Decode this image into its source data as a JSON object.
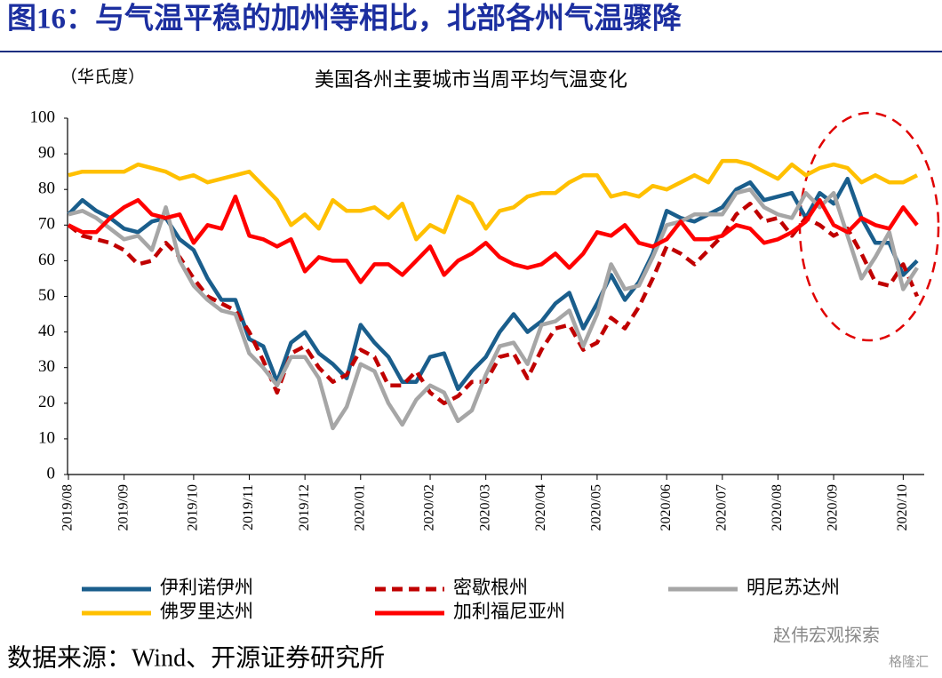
{
  "header": {
    "title": "图16：与气温平稳的加州等相比，北部各州气温骤降"
  },
  "chart_data": {
    "type": "line",
    "title": "美国各州主要城市当周平均气温变化",
    "y_label": "（华氏度）",
    "categories": [
      "2019/08",
      null,
      null,
      null,
      "2019/09",
      null,
      null,
      null,
      null,
      "2019/10",
      null,
      null,
      null,
      "2019/11",
      null,
      null,
      null,
      "2019/12",
      null,
      null,
      null,
      "2020/01",
      null,
      null,
      null,
      null,
      "2020/02",
      null,
      null,
      null,
      "2020/03",
      null,
      null,
      null,
      "2020/04",
      null,
      null,
      null,
      "2020/05",
      null,
      null,
      null,
      null,
      "2020/06",
      null,
      null,
      null,
      "2020/07",
      null,
      null,
      null,
      "2020/08",
      null,
      null,
      null,
      "2020/09",
      null,
      null,
      null,
      null,
      "2020/10",
      null
    ],
    "series": [
      {
        "name": "伊利诺伊州",
        "color": "#1a5e8c",
        "dashed": false,
        "values": [
          73,
          77,
          74,
          72,
          69,
          68,
          71,
          72,
          66,
          63,
          55,
          49,
          49,
          38,
          36,
          26,
          37,
          40,
          34,
          31,
          27,
          42,
          37,
          33,
          26,
          26,
          33,
          34,
          24,
          29,
          33,
          40,
          45,
          40,
          43,
          48,
          51,
          41,
          48,
          56,
          49,
          54,
          62,
          74,
          72,
          71,
          73,
          75,
          80,
          82,
          77,
          78,
          79,
          72,
          79,
          76,
          83,
          72,
          65,
          65,
          56,
          60
        ]
      },
      {
        "name": "密歇根州",
        "color": "#c00000",
        "dashed": true,
        "values": [
          70,
          67,
          66,
          65,
          63,
          59,
          60,
          65,
          61,
          55,
          50,
          48,
          46,
          40,
          32,
          23,
          34,
          36,
          30,
          26,
          28,
          35,
          33,
          25,
          25,
          29,
          23,
          20,
          22,
          26,
          26,
          33,
          34,
          27,
          35,
          41,
          42,
          35,
          37,
          44,
          41,
          47,
          55,
          64,
          62,
          59,
          63,
          67,
          73,
          76,
          71,
          72,
          67,
          72,
          70,
          67,
          69,
          62,
          54,
          53,
          59,
          50
        ]
      },
      {
        "name": "明尼苏达州",
        "color": "#a6a6a6",
        "dashed": false,
        "values": [
          73,
          74,
          72,
          69,
          66,
          67,
          63,
          75,
          60,
          53,
          49,
          46,
          45,
          34,
          30,
          25,
          33,
          33,
          27,
          13,
          19,
          31,
          29,
          20,
          14,
          21,
          25,
          23,
          15,
          18,
          28,
          36,
          37,
          31,
          42,
          43,
          46,
          36,
          45,
          59,
          52,
          53,
          61,
          70,
          71,
          73,
          73,
          73,
          79,
          80,
          75,
          73,
          72,
          79,
          75,
          79,
          67,
          55,
          61,
          68,
          52,
          58
        ]
      },
      {
        "name": "佛罗里达州",
        "color": "#ffc000",
        "dashed": false,
        "values": [
          84,
          85,
          85,
          85,
          85,
          87,
          86,
          85,
          83,
          84,
          82,
          83,
          84,
          85,
          81,
          77,
          70,
          73,
          69,
          77,
          74,
          74,
          75,
          72,
          76,
          66,
          70,
          68,
          78,
          76,
          69,
          74,
          75,
          78,
          79,
          79,
          82,
          84,
          84,
          78,
          79,
          78,
          81,
          80,
          82,
          84,
          82,
          88,
          88,
          87,
          85,
          83,
          87,
          84,
          86,
          87,
          86,
          82,
          84,
          82,
          82,
          84
        ]
      },
      {
        "name": "加利福尼亚州",
        "color": "#ff0000",
        "dashed": false,
        "values": [
          70,
          68,
          68,
          72,
          75,
          77,
          73,
          72,
          73,
          65,
          70,
          69,
          78,
          67,
          66,
          64,
          66,
          57,
          61,
          60,
          60,
          54,
          59,
          59,
          56,
          60,
          64,
          56,
          60,
          62,
          65,
          61,
          59,
          58,
          59,
          62,
          58,
          62,
          68,
          67,
          70,
          65,
          64,
          66,
          71,
          66,
          66,
          67,
          70,
          69,
          65,
          66,
          68,
          71,
          77,
          70,
          68,
          72,
          70,
          69,
          75,
          70
        ]
      }
    ],
    "ylim": [
      0,
      100
    ],
    "yticks": [
      0,
      10,
      20,
      30,
      40,
      50,
      60,
      70,
      80,
      90,
      100
    ],
    "grid": false
  },
  "source": "数据来源：Wind、开源证券研究所",
  "watermark": "赵伟宏观探索",
  "watermark2": "格隆汇"
}
